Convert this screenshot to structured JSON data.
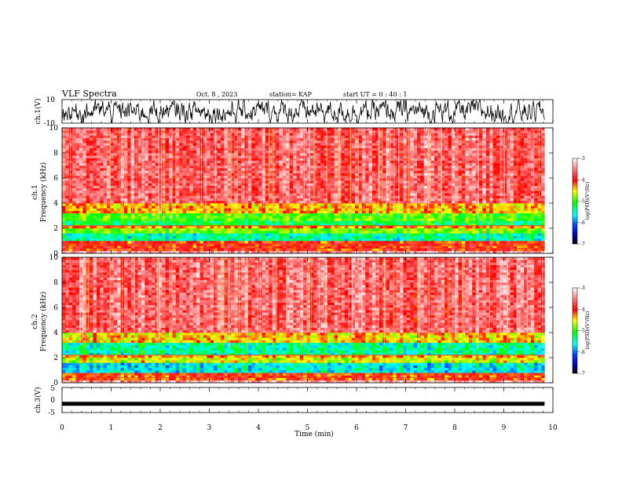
{
  "header": {
    "title": "VLF Spectra",
    "date": "Oct. 8  , 2023",
    "station": "station= KAP",
    "start": "start  UT =   0 : 40 : 1"
  },
  "chart_data": [
    {
      "type": "line",
      "name": "ch.1 waveform",
      "ylabel": "ch.1(V)",
      "ylim": [
        -10,
        10
      ],
      "xlim": [
        0,
        10
      ],
      "yticks": [
        "10",
        "-10"
      ],
      "color": "#000000"
    },
    {
      "type": "heatmap",
      "name": "ch.1 spectrogram",
      "ylabel": "ch.1\nFrequency  (kHz)",
      "ylabel_lines": [
        "ch.1",
        "Frequency  (kHz)"
      ],
      "ylim": [
        0,
        10
      ],
      "yticks": [
        "0",
        "2",
        "4",
        "6",
        "8",
        "10"
      ],
      "xlim": [
        0,
        9.83
      ],
      "bands": [
        {
          "from": 0.0,
          "to": 0.3,
          "level": -3.3
        },
        {
          "from": 0.3,
          "to": 0.9,
          "level": -4.0
        },
        {
          "from": 0.9,
          "to": 1.6,
          "level": -5.4
        },
        {
          "from": 1.6,
          "to": 2.0,
          "level": -4.8
        },
        {
          "from": 2.0,
          "to": 2.3,
          "level": -4.2
        },
        {
          "from": 2.3,
          "to": 2.7,
          "level": -5.2
        },
        {
          "from": 2.7,
          "to": 3.3,
          "level": -4.9
        },
        {
          "from": 3.3,
          "to": 4.0,
          "level": -4.3
        },
        {
          "from": 4.0,
          "to": 10.0,
          "level": -3.6
        }
      ],
      "colorbar": {
        "label": "log(PSD)(V²/Hz)",
        "min": -7,
        "max": -3,
        "ticks": [
          "-3",
          "-4",
          "-5",
          "-6",
          "-7"
        ]
      }
    },
    {
      "type": "heatmap",
      "name": "ch.2 spectrogram",
      "ylabel": "ch.2\nFrequency  (kHz)",
      "ylabel_lines": [
        "ch.2",
        "Frequency  (kHz)"
      ],
      "ylim": [
        0,
        10
      ],
      "yticks": [
        "0",
        "2",
        "4",
        "6",
        "8",
        "10"
      ],
      "xlim": [
        0,
        9.83
      ],
      "bands": [
        {
          "from": 0.0,
          "to": 0.3,
          "level": -3.3
        },
        {
          "from": 0.3,
          "to": 0.8,
          "level": -4.1
        },
        {
          "from": 0.8,
          "to": 1.7,
          "level": -5.6
        },
        {
          "from": 1.7,
          "to": 2.0,
          "level": -4.6
        },
        {
          "from": 2.0,
          "to": 2.3,
          "level": -4.3
        },
        {
          "from": 2.3,
          "to": 3.2,
          "level": -5.4
        },
        {
          "from": 3.2,
          "to": 4.0,
          "level": -4.4
        },
        {
          "from": 4.0,
          "to": 10.0,
          "level": -3.6
        }
      ],
      "colorbar": {
        "label": "log(PSD)(V²/Hz)",
        "min": -7,
        "max": -3,
        "ticks": [
          "-3",
          "-4",
          "-5",
          "-6",
          "-7"
        ]
      }
    },
    {
      "type": "line",
      "name": "ch.3 waveform",
      "ylabel": "ch.3(V)",
      "ylim": [
        -5,
        5
      ],
      "xlim": [
        0,
        10
      ],
      "yticks": [
        "5",
        "0",
        "-5"
      ],
      "level": -1.5,
      "color": "#000000"
    }
  ],
  "x_axis": {
    "label": "Time  (min)",
    "ticks": [
      "0",
      "1",
      "2",
      "3",
      "4",
      "5",
      "6",
      "7",
      "8",
      "9",
      "10"
    ]
  }
}
